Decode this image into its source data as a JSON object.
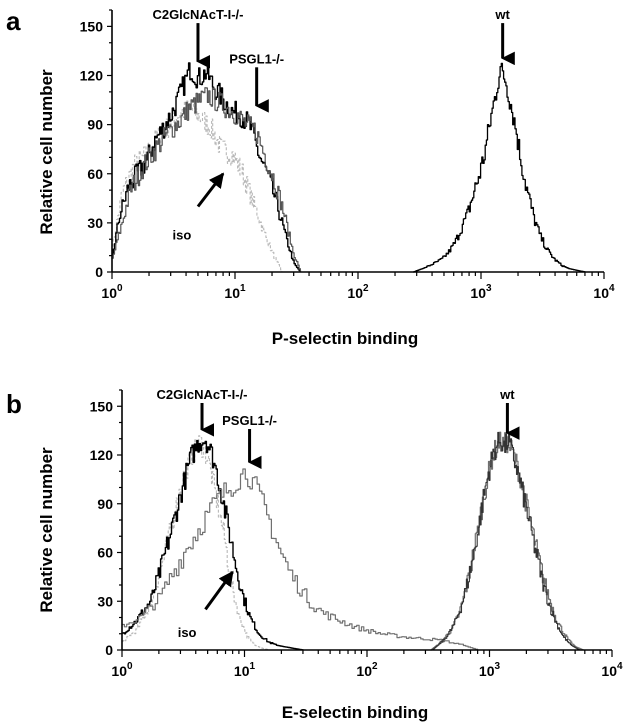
{
  "chart_data": [
    {
      "panel_label": "a",
      "type": "line",
      "xscale": "log",
      "xlim": [
        1,
        10000
      ],
      "ylim": [
        0,
        160
      ],
      "xlabel": "P-selectin binding",
      "ylabel": "Relative cell number",
      "yticks": [
        {
          "value": 0,
          "label": "0"
        },
        {
          "value": 30,
          "label": "30"
        },
        {
          "value": 60,
          "label": "60"
        },
        {
          "value": 90,
          "label": "90"
        },
        {
          "value": 120,
          "label": "120"
        },
        {
          "value": 150,
          "label": "150"
        }
      ],
      "xticks": [
        {
          "value": 1,
          "base": "10",
          "exp": "0"
        },
        {
          "value": 10,
          "base": "10",
          "exp": "1"
        },
        {
          "value": 100,
          "base": "10",
          "exp": "2"
        },
        {
          "value": 1000,
          "base": "10",
          "exp": "3"
        },
        {
          "value": 10000,
          "base": "10",
          "exp": "4"
        }
      ],
      "series": [
        {
          "color": "#b8b8b8",
          "dash": "3,2",
          "width": 1.1,
          "x": [
            1.0,
            1.2,
            1.5,
            1.9,
            2.3,
            2.8,
            3.4,
            4.2,
            5.1,
            6.3,
            7.7,
            9.4,
            11.5,
            14.0,
            17.0,
            20.5,
            24.0
          ],
          "y": [
            15,
            48,
            65,
            72,
            82,
            88,
            96,
            100,
            95,
            88,
            75,
            72,
            60,
            42,
            25,
            10,
            0
          ]
        },
        {
          "color": "#000000",
          "dash": "",
          "width": 1.4,
          "x": [
            1.0,
            1.15,
            1.35,
            1.6,
            1.9,
            2.2,
            2.6,
            3.1,
            3.7,
            4.3,
            5.0,
            5.8,
            6.8,
            8.0,
            9.4,
            11.0,
            13.0,
            15.5,
            18.5,
            22.0,
            26.0,
            30.0,
            34.0
          ],
          "y": [
            10,
            35,
            52,
            60,
            68,
            80,
            88,
            98,
            112,
            124,
            118,
            122,
            112,
            105,
            98,
            96,
            90,
            72,
            58,
            40,
            20,
            5,
            0
          ]
        },
        {
          "color": "#555555",
          "dash": "",
          "width": 1.2,
          "x": [
            1.0,
            1.2,
            1.4,
            1.7,
            2.0,
            2.4,
            2.9,
            3.5,
            4.2,
            5.0,
            6.0,
            7.2,
            8.6,
            10.3,
            12.3,
            14.7,
            17.6,
            21.0,
            25.0,
            29.5,
            34.0
          ],
          "y": [
            8,
            30,
            50,
            62,
            70,
            78,
            86,
            92,
            100,
            104,
            108,
            104,
            100,
            96,
            90,
            86,
            70,
            55,
            35,
            12,
            0
          ]
        },
        {
          "color": "#000000",
          "dash": "",
          "width": 1.3,
          "x": [
            280,
            330,
            380,
            430,
            480,
            540,
            610,
            680,
            760,
            850,
            950,
            1060,
            1180,
            1300,
            1420,
            1560,
            1720,
            1900,
            2100,
            2350,
            2650,
            3000,
            3400,
            3900,
            4500,
            5200,
            6000,
            7000
          ],
          "y": [
            0,
            2,
            4,
            6,
            8,
            12,
            18,
            26,
            34,
            46,
            58,
            72,
            92,
            108,
            124,
            118,
            104,
            88,
            68,
            50,
            34,
            22,
            14,
            8,
            4,
            2,
            1,
            0
          ]
        }
      ],
      "annotations": [
        {
          "text": "C2GlcNAcT-I-/-",
          "x": 5.0,
          "y": 152,
          "arrow_to_y": 126
        },
        {
          "text": "PSGL1-/-",
          "x": 15.0,
          "y": 125,
          "arrow_to_y": 99
        },
        {
          "text": "wt",
          "x": 1500,
          "y": 152,
          "arrow_to_y": 128
        },
        {
          "text": "iso",
          "label_x": 3.7,
          "label_y": 20,
          "arrow_from_x": 5.0,
          "arrow_from_y": 40,
          "arrow_to_x": 8.0,
          "arrow_to_y": 60
        }
      ]
    },
    {
      "panel_label": "b",
      "type": "line",
      "xscale": "log",
      "xlim": [
        1,
        10000
      ],
      "ylim": [
        0,
        160
      ],
      "xlabel": "E-selectin binding",
      "ylabel": "Relative cell number",
      "yticks": [
        {
          "value": 0,
          "label": "0"
        },
        {
          "value": 30,
          "label": "30"
        },
        {
          "value": 60,
          "label": "60"
        },
        {
          "value": 90,
          "label": "90"
        },
        {
          "value": 120,
          "label": "120"
        },
        {
          "value": 150,
          "label": "150"
        }
      ],
      "xticks": [
        {
          "value": 1,
          "base": "10",
          "exp": "0"
        },
        {
          "value": 10,
          "base": "10",
          "exp": "1"
        },
        {
          "value": 100,
          "base": "10",
          "exp": "2"
        },
        {
          "value": 1000,
          "base": "10",
          "exp": "3"
        },
        {
          "value": 10000,
          "base": "10",
          "exp": "4"
        }
      ],
      "series": [
        {
          "color": "#b8b8b8",
          "dash": "3,2",
          "width": 1.1,
          "x": [
            1.0,
            1.3,
            1.7,
            2.1,
            2.6,
            3.1,
            3.7,
            4.3,
            5.0,
            5.8,
            6.8,
            7.8,
            9.0,
            10.5,
            12.0,
            14.0,
            16.0
          ],
          "y": [
            5,
            12,
            28,
            52,
            80,
            105,
            120,
            128,
            118,
            95,
            70,
            40,
            20,
            8,
            3,
            1,
            0
          ]
        },
        {
          "color": "#000000",
          "dash": "",
          "width": 1.4,
          "x": [
            1.0,
            1.3,
            1.7,
            2.1,
            2.6,
            3.1,
            3.6,
            4.2,
            4.8,
            5.5,
            6.3,
            7.2,
            8.3,
            9.5,
            11.0,
            13.0,
            15.5,
            18.0,
            21.0,
            25.0,
            30.0
          ],
          "y": [
            10,
            18,
            30,
            52,
            78,
            100,
            118,
            128,
            130,
            118,
            100,
            78,
            55,
            35,
            20,
            10,
            5,
            3,
            2,
            1,
            0
          ]
        },
        {
          "color": "#707070",
          "dash": "",
          "width": 1.2,
          "x": [
            1.0,
            1.4,
            2.0,
            2.6,
            3.3,
            4.0,
            4.8,
            5.8,
            7.0,
            8.5,
            10.0,
            11.5,
            13.5,
            16.0,
            19.0,
            23.0,
            28.0,
            35.0,
            45.0,
            60.0,
            80.0,
            100.0,
            130.0,
            200.0,
            400.0,
            600.0,
            800.0
          ],
          "y": [
            15,
            20,
            32,
            48,
            62,
            72,
            82,
            92,
            98,
            104,
            110,
            104,
            92,
            78,
            62,
            48,
            38,
            28,
            22,
            18,
            14,
            12,
            10,
            8,
            6,
            3,
            0
          ]
        },
        {
          "color": "#707070",
          "dash": "",
          "width": 1.2,
          "x": [
            330,
            400,
            480,
            560,
            640,
            720,
            800,
            880,
            960,
            1040,
            1120,
            1200,
            1290,
            1380,
            1480,
            1600,
            1750,
            1930,
            2150,
            2400,
            2700,
            3050,
            3450,
            3900,
            4400,
            5000,
            5800
          ],
          "y": [
            0,
            5,
            12,
            22,
            38,
            56,
            74,
            92,
            106,
            118,
            124,
            128,
            126,
            128,
            124,
            118,
            108,
            94,
            78,
            62,
            46,
            32,
            20,
            12,
            6,
            2,
            0
          ]
        },
        {
          "color": "#333333",
          "dash": "",
          "width": 1.1,
          "x": [
            340,
            420,
            500,
            580,
            660,
            740,
            820,
            900,
            980,
            1060,
            1140,
            1230,
            1320,
            1420,
            1530,
            1660,
            1810,
            2000,
            2220,
            2480,
            2780,
            3120,
            3520,
            4000,
            4600,
            5400
          ],
          "y": [
            0,
            6,
            14,
            26,
            42,
            60,
            78,
            96,
            110,
            120,
            126,
            130,
            124,
            130,
            120,
            112,
            100,
            86,
            70,
            54,
            38,
            26,
            16,
            8,
            3,
            0
          ]
        }
      ],
      "annotations": [
        {
          "text": "C2GlcNAcT-I-/-",
          "x": 4.5,
          "y": 152,
          "arrow_to_y": 133
        },
        {
          "text": "PSGL1-/-",
          "x": 11.0,
          "y": 136,
          "arrow_to_y": 113
        },
        {
          "text": "wt",
          "x": 1400,
          "y": 152,
          "arrow_to_y": 131
        },
        {
          "text": "iso",
          "label_x": 3.4,
          "label_y": 8,
          "arrow_from_x": 4.8,
          "arrow_from_y": 25,
          "arrow_to_x": 8.0,
          "arrow_to_y": 48
        }
      ]
    }
  ]
}
